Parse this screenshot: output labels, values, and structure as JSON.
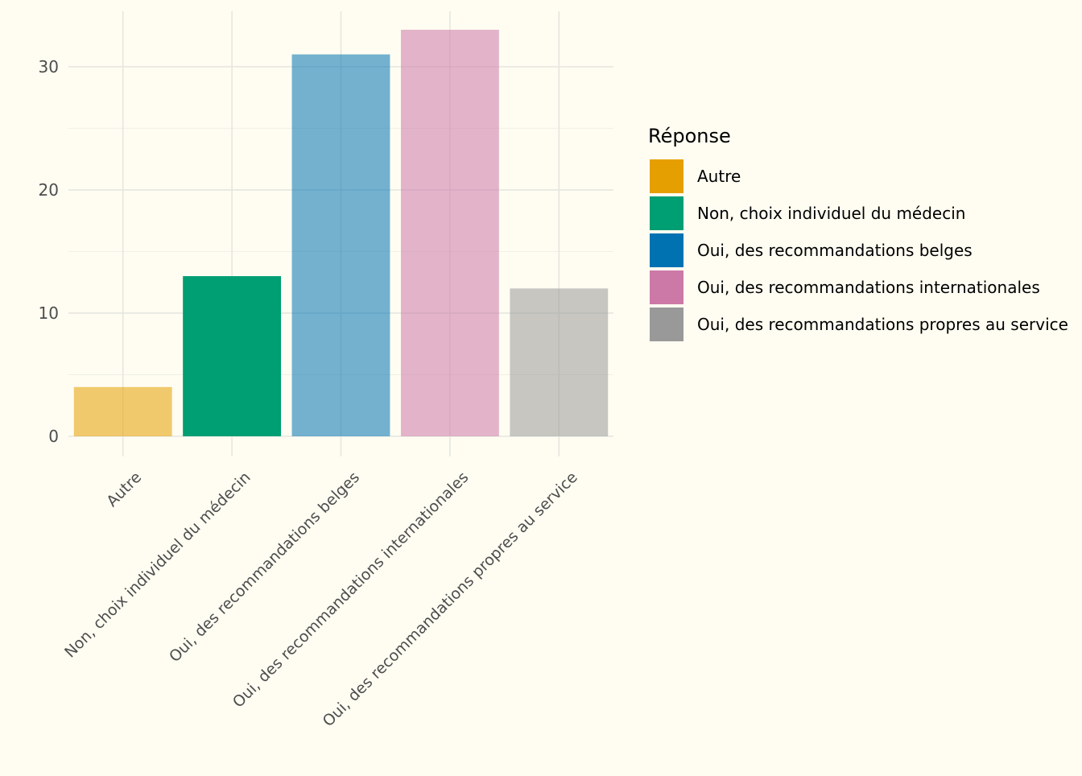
{
  "chart_data": {
    "type": "bar",
    "categories": [
      "Autre",
      "Non, choix individuel du médecin",
      "Oui, des recommandations belges",
      "Oui, des recommandations internationales",
      "Oui, des recommandations propres au service"
    ],
    "values": [
      4,
      13,
      31,
      33,
      12
    ],
    "colors": [
      "#E69F00",
      "#009E73",
      "#0072B2",
      "#CC79A7",
      "#999999"
    ],
    "bar_opacity": [
      0.55,
      1.0,
      0.55,
      0.55,
      0.55
    ],
    "ylim": [
      0,
      34.5
    ],
    "yticks": [
      0,
      10,
      20,
      30
    ],
    "grid": true,
    "legend": {
      "title": "Réponse",
      "position": "right"
    },
    "background": "#fffdf2",
    "gridColor": "#e6e6e0",
    "tickLabelColor": "#4d4d4d"
  }
}
